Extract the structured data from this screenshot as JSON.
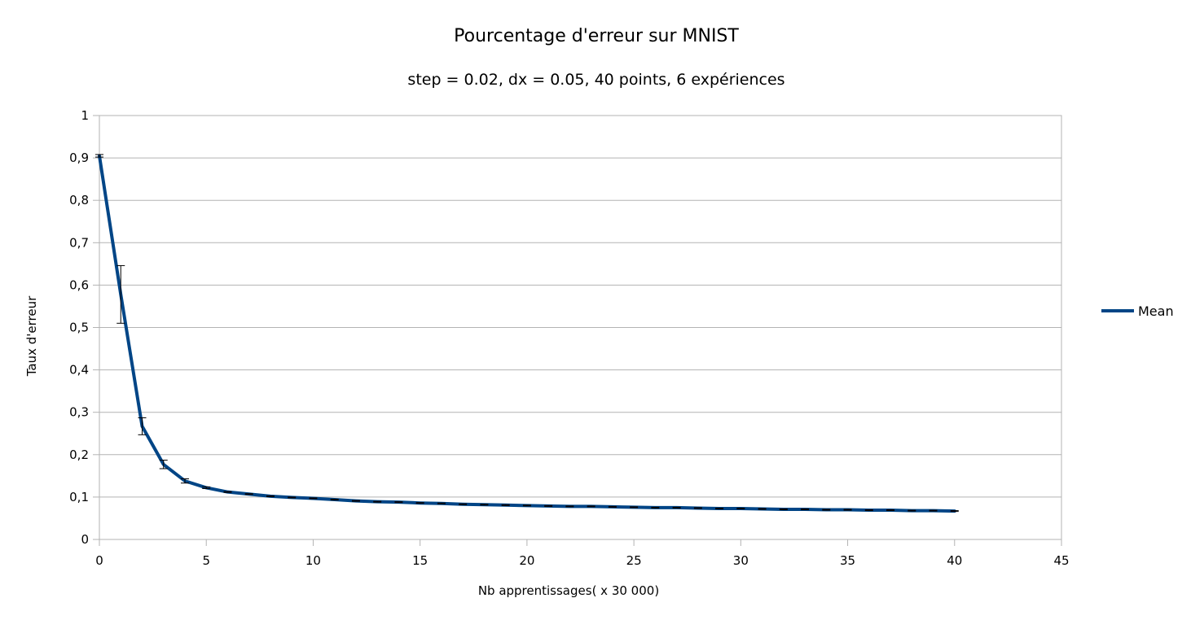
{
  "chart_data": {
    "type": "line",
    "title": "Pourcentage d'erreur sur MNIST",
    "subtitle": "step = 0.02, dx = 0.05, 40 points, 6 expériences",
    "xlabel": "Nb apprentissages( x 30 000)",
    "ylabel": "Taux d'erreur",
    "xlim": [
      0,
      45
    ],
    "ylim": [
      0,
      1
    ],
    "x_ticks": [
      0,
      5,
      10,
      15,
      20,
      25,
      30,
      35,
      40,
      45
    ],
    "x_tick_labels": [
      "0",
      "5",
      "10",
      "15",
      "20",
      "25",
      "30",
      "35",
      "40",
      "45"
    ],
    "y_ticks": [
      0,
      0.1,
      0.2,
      0.3,
      0.4,
      0.5,
      0.6,
      0.7,
      0.8,
      0.9,
      1
    ],
    "y_tick_labels": [
      "0",
      "0,1",
      "0,2",
      "0,3",
      "0,4",
      "0,5",
      "0,6",
      "0,7",
      "0,8",
      "0,9",
      "1"
    ],
    "grid": "horizontal",
    "legend_position": "right",
    "series": [
      {
        "name": "Mean",
        "color": "#004586",
        "x": [
          0,
          1,
          2,
          3,
          4,
          5,
          6,
          7,
          8,
          9,
          10,
          11,
          12,
          13,
          14,
          15,
          16,
          17,
          18,
          19,
          20,
          21,
          22,
          23,
          24,
          25,
          26,
          27,
          28,
          29,
          30,
          31,
          32,
          33,
          34,
          35,
          36,
          37,
          38,
          39,
          40
        ],
        "y": [
          0.905,
          0.578,
          0.267,
          0.177,
          0.138,
          0.122,
          0.112,
          0.107,
          0.102,
          0.099,
          0.097,
          0.094,
          0.091,
          0.089,
          0.088,
          0.086,
          0.085,
          0.083,
          0.082,
          0.081,
          0.08,
          0.079,
          0.078,
          0.078,
          0.077,
          0.076,
          0.075,
          0.075,
          0.074,
          0.073,
          0.073,
          0.072,
          0.071,
          0.071,
          0.07,
          0.07,
          0.069,
          0.069,
          0.068,
          0.068,
          0.067
        ],
        "error": [
          0.003,
          0.068,
          0.02,
          0.01,
          0.005,
          0.002,
          0.001,
          0.001,
          0.001,
          0.001,
          0.001,
          0.001,
          0.001,
          0.001,
          0.001,
          0.001,
          0.001,
          0.001,
          0.001,
          0.001,
          0.001,
          0.001,
          0.001,
          0.001,
          0.001,
          0.001,
          0.001,
          0.001,
          0.001,
          0.001,
          0.001,
          0.001,
          0.001,
          0.001,
          0.001,
          0.001,
          0.001,
          0.001,
          0.001,
          0.001,
          0.001
        ]
      }
    ]
  }
}
